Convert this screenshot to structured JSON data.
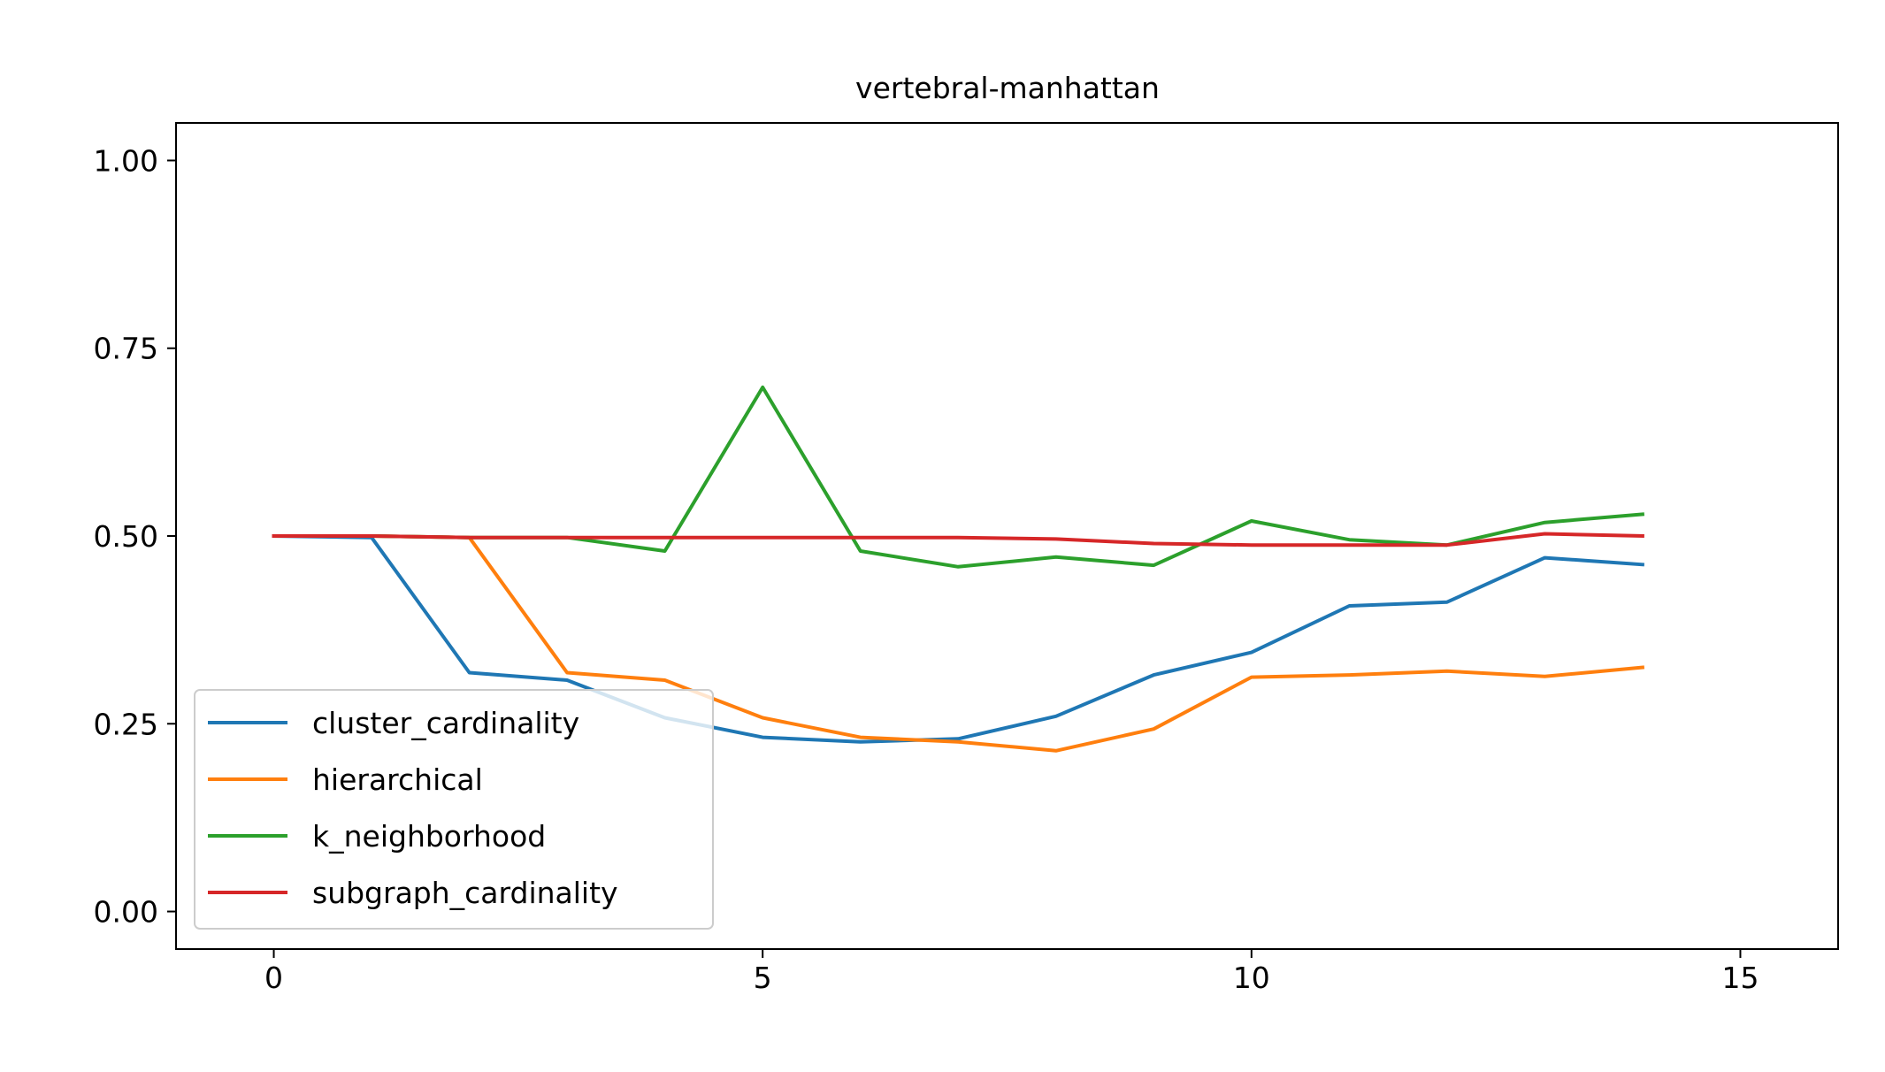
{
  "chart_data": {
    "type": "line",
    "title": "vertebral-manhattan",
    "xlabel": "",
    "ylabel": "",
    "xlim": [
      -1,
      16
    ],
    "ylim": [
      -0.05,
      1.05
    ],
    "x_ticks": [
      0,
      5,
      10,
      15
    ],
    "x_tick_labels": [
      "0",
      "5",
      "10",
      "15"
    ],
    "y_ticks": [
      0.0,
      0.25,
      0.5,
      0.75,
      1.0
    ],
    "y_tick_labels": [
      "0.00",
      "0.25",
      "0.50",
      "0.75",
      "1.00"
    ],
    "grid": false,
    "legend_position": "lower-left",
    "x": [
      0,
      1,
      2,
      3,
      4,
      5,
      6,
      7,
      8,
      9,
      10,
      11,
      12,
      13,
      14
    ],
    "series": [
      {
        "name": "cluster_cardinality",
        "color": "#1f77b4",
        "values": [
          0.5,
          0.498,
          0.318,
          0.308,
          0.258,
          0.232,
          0.226,
          0.23,
          0.26,
          0.315,
          0.345,
          0.407,
          0.412,
          0.471,
          0.462
        ]
      },
      {
        "name": "hierarchical",
        "color": "#ff7f0e",
        "values": [
          0.5,
          0.5,
          0.498,
          0.318,
          0.308,
          0.258,
          0.232,
          0.226,
          0.214,
          0.243,
          0.312,
          0.315,
          0.32,
          0.313,
          0.325
        ]
      },
      {
        "name": "k_neighborhood",
        "color": "#2ca02c",
        "values": [
          0.5,
          0.5,
          0.498,
          0.498,
          0.48,
          0.698,
          0.48,
          0.459,
          0.472,
          0.461,
          0.52,
          0.495,
          0.488,
          0.518,
          0.529
        ]
      },
      {
        "name": "subgraph_cardinality",
        "color": "#d62728",
        "values": [
          0.5,
          0.5,
          0.498,
          0.498,
          0.498,
          0.498,
          0.498,
          0.498,
          0.496,
          0.49,
          0.488,
          0.488,
          0.488,
          0.503,
          0.5
        ]
      }
    ]
  }
}
